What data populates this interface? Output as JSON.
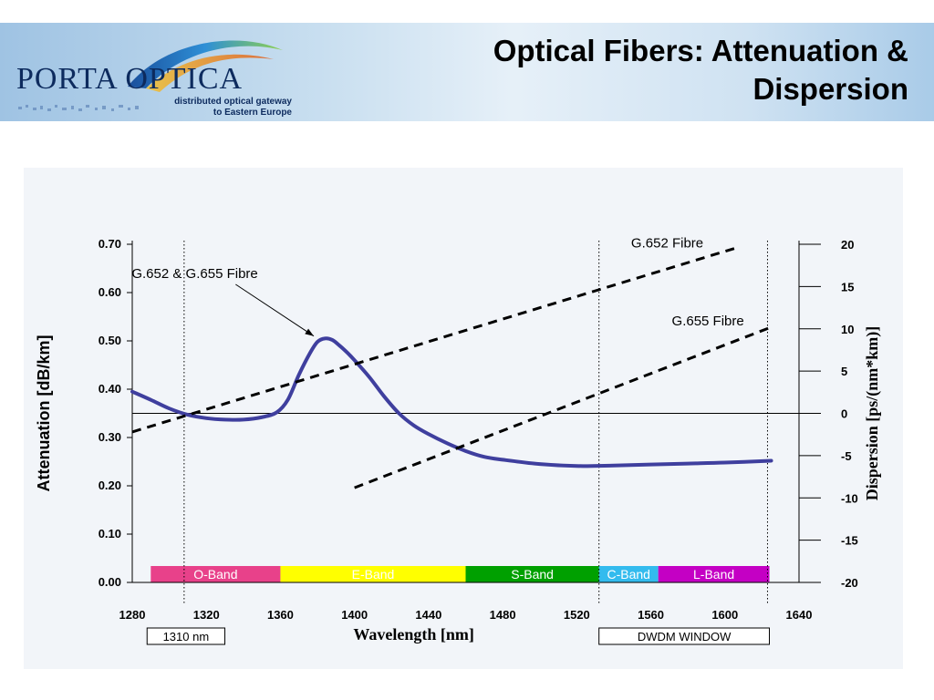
{
  "header": {
    "logo_main": "PORTA OPTICA",
    "logo_sub_line1": "distributed optical gateway",
    "logo_sub_line2": "to Eastern Europe",
    "title_line1": "Optical Fibers: Attenuation &",
    "title_line2": "Dispersion"
  },
  "colors": {
    "attenuation_curve": "#3f3f9e",
    "header_text": "#0d2b5e"
  },
  "chart_data": {
    "type": "line",
    "xlabel": "Wavelength [nm]",
    "ylabel": "Attenuation [dB/km]",
    "y2label": "Dispersion [ps/(nm*km)]",
    "xlim": [
      1280,
      1640
    ],
    "ylim": [
      0,
      0.7
    ],
    "y2lim": [
      -20,
      20
    ],
    "x_ticks": [
      "1280",
      "1320",
      "1360",
      "1400",
      "1440",
      "1480",
      "1520",
      "1560",
      "1600",
      "1640"
    ],
    "y_ticks": [
      "0.00",
      "0.10",
      "0.20",
      "0.30",
      "0.40",
      "0.50",
      "0.60",
      "0.70"
    ],
    "y2_ticks": [
      "-20",
      "-15",
      "-10",
      "-5",
      "0",
      "5",
      "10",
      "15",
      "20"
    ],
    "attenuation": {
      "x": [
        1280,
        1290,
        1300,
        1310,
        1320,
        1330,
        1340,
        1350,
        1358,
        1364,
        1370,
        1376,
        1380,
        1384,
        1388,
        1392,
        1396,
        1400,
        1408,
        1416,
        1424,
        1432,
        1440,
        1450,
        1460,
        1470,
        1480,
        1500,
        1520,
        1540,
        1560,
        1580,
        1600,
        1625
      ],
      "y": [
        0.395,
        0.378,
        0.36,
        0.347,
        0.34,
        0.337,
        0.337,
        0.342,
        0.352,
        0.378,
        0.43,
        0.475,
        0.498,
        0.505,
        0.502,
        0.49,
        0.476,
        0.46,
        0.425,
        0.385,
        0.35,
        0.325,
        0.307,
        0.288,
        0.272,
        0.26,
        0.254,
        0.245,
        0.241,
        0.242,
        0.244,
        0.246,
        0.248,
        0.252
      ]
    },
    "dispersion_series": [
      {
        "name": "G.652 Fibre",
        "x": [
          1280,
          1605
        ],
        "y": [
          -2.2,
          19.5
        ]
      },
      {
        "name": "G.655 Fibre",
        "x": [
          1400,
          1625
        ],
        "y": [
          -8.8,
          10.2
        ]
      }
    ],
    "annotations": [
      "G.652 & G.655 Fibre"
    ],
    "markers": {
      "x1": 1308,
      "x2": 1532,
      "x3": 1623
    },
    "bands": [
      {
        "label": "O-Band",
        "from": 1290,
        "to": 1360,
        "color": "#e8418a",
        "text": "#ffffff"
      },
      {
        "label": "E-Band",
        "from": 1360,
        "to": 1460,
        "color": "#ffff00",
        "text": "#ffffff"
      },
      {
        "label": "S-Band",
        "from": 1460,
        "to": 1532,
        "color": "#00a000",
        "text": "#ffffff"
      },
      {
        "label": "C-Band",
        "from": 1532,
        "to": 1564,
        "color": "#33bbee",
        "text": "#ffffff"
      },
      {
        "label": "L-Band",
        "from": 1564,
        "to": 1624,
        "color": "#c400c4",
        "text": "#ffffff"
      }
    ],
    "boxes": [
      {
        "label": "1310 nm",
        "from": 1288,
        "to": 1330
      },
      {
        "label": "DWDM WINDOW",
        "from": 1532,
        "to": 1624
      }
    ]
  }
}
